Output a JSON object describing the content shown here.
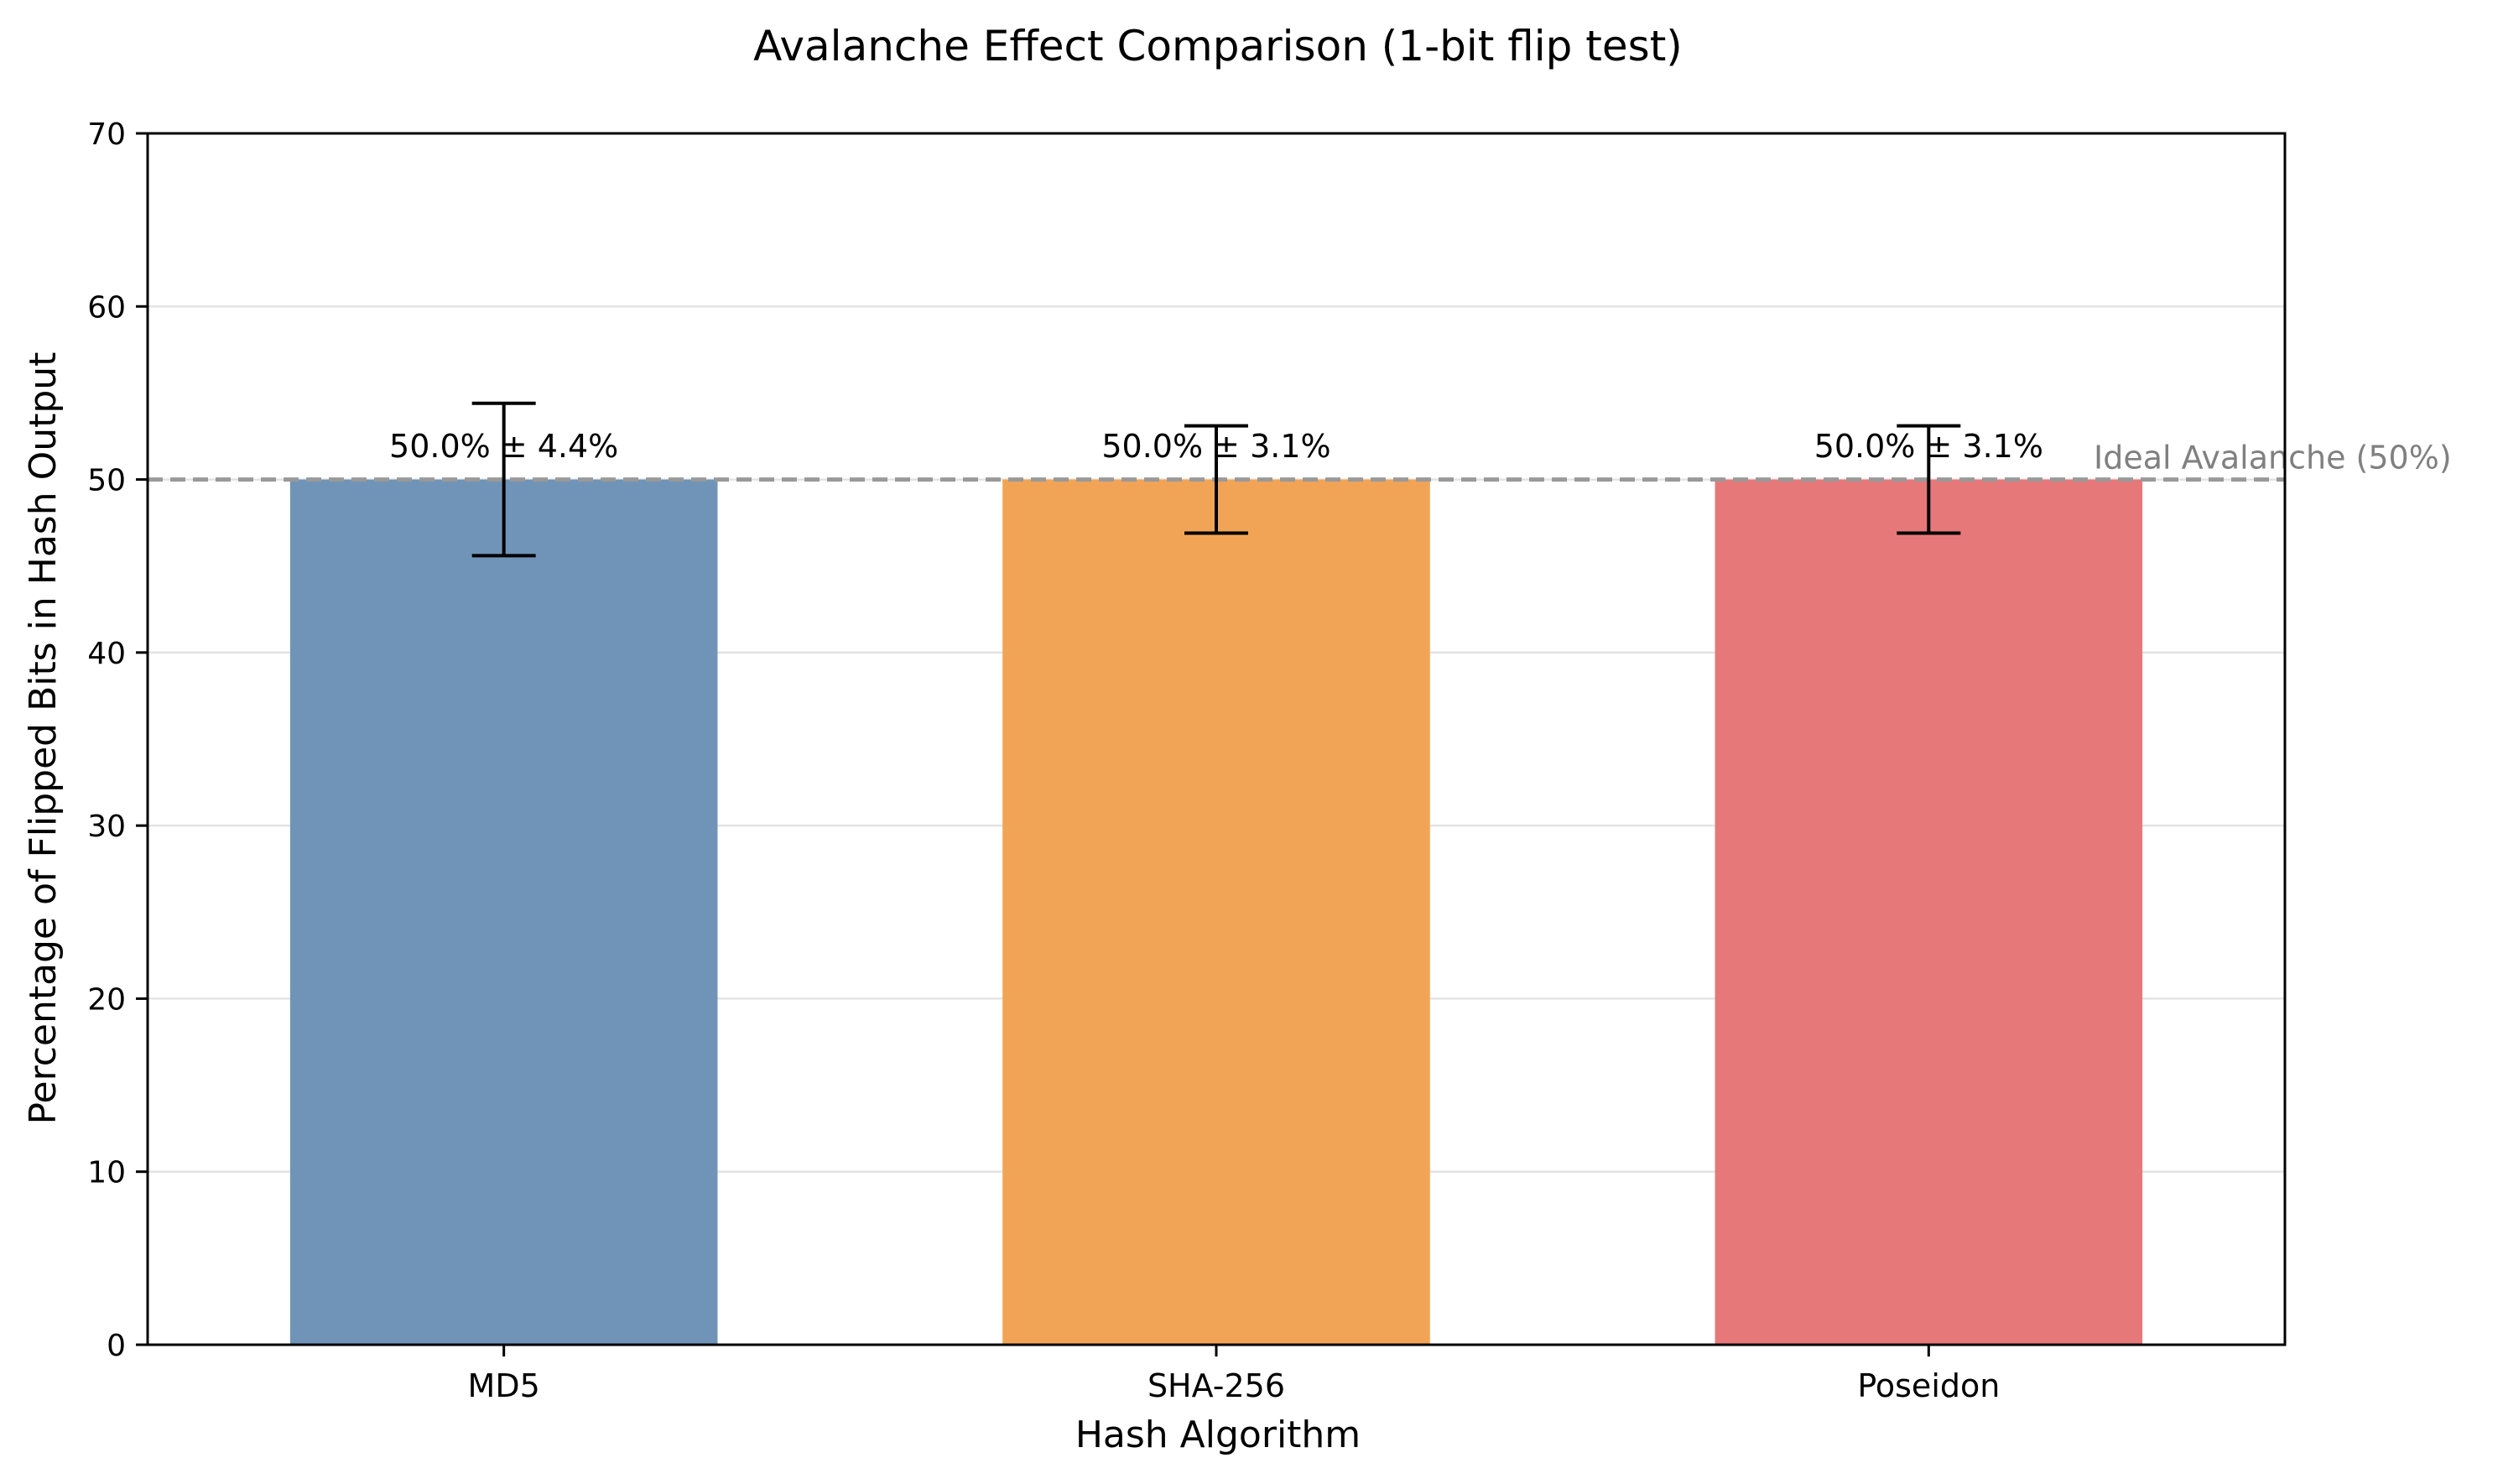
{
  "chart_data": {
    "type": "bar",
    "title": "Avalanche Effect Comparison (1-bit flip test)",
    "xlabel": "Hash Algorithm",
    "ylabel": "Percentage of Flipped Bits in Hash Output",
    "ylim": [
      0,
      70
    ],
    "yticks": [
      0,
      10,
      20,
      30,
      40,
      50,
      60,
      70
    ],
    "grid": "horizontal",
    "categories": [
      "MD5",
      "SHA-256",
      "Poseidon"
    ],
    "values": [
      50.0,
      50.0,
      50.0
    ],
    "errors": [
      4.4,
      3.1,
      3.1
    ],
    "bar_labels": [
      "50.0% ± 4.4%",
      "50.0% ± 3.1%",
      "50.0% ± 3.1%"
    ],
    "colors": [
      "#7094b8",
      "#f2a456",
      "#e7787a"
    ],
    "reference_line": {
      "value": 50,
      "label": "Ideal Avalanche (50%)",
      "style": "dashed",
      "color": "#999999"
    }
  }
}
